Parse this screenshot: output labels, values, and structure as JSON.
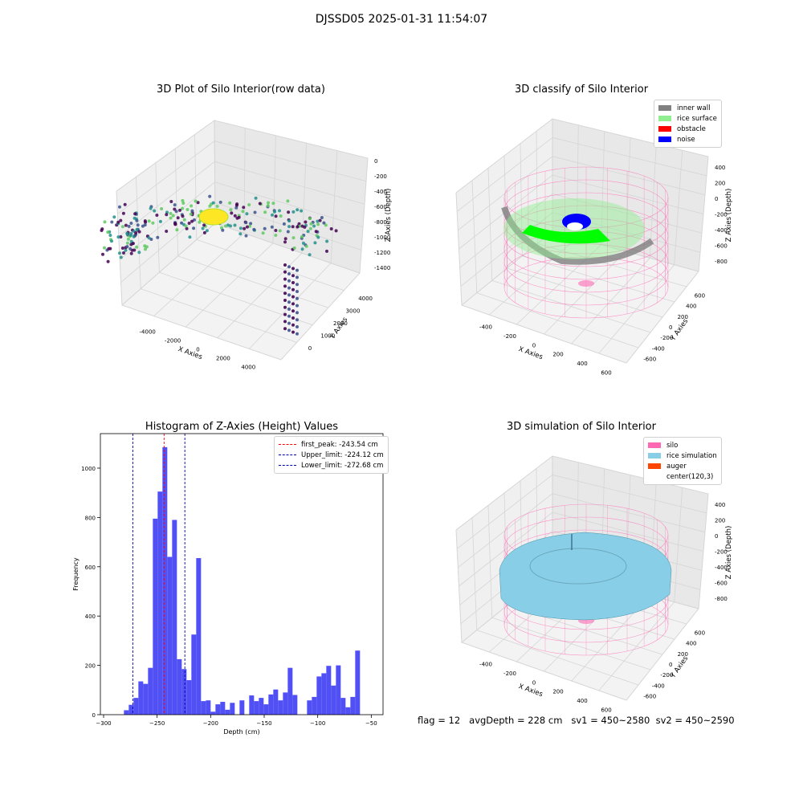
{
  "figure": {
    "suptitle": "DJSSD05 2025-01-31 11:54:07",
    "status": {
      "flag": "flag = 12",
      "avg_depth": "avgDepth = 228 cm",
      "sv1": "sv1 = 450~2580",
      "sv2": "sv2 = 450~2590"
    }
  },
  "chart_data": [
    {
      "type": "scatter",
      "title": "3D Plot of Silo Interior(row data)",
      "xlabel": "X Axies",
      "ylabel": "Y Axies",
      "zlabel": "Z Axies (Depth)",
      "x_ticks": [
        "-4000",
        "-2000",
        "0",
        "2000",
        "4000"
      ],
      "y_ticks": [
        "0",
        "1000",
        "2000",
        "3000",
        "4000"
      ],
      "z_ticks": [
        "0",
        "-200",
        "-400",
        "-600",
        "-800",
        "-1000",
        "-1200",
        "-1400"
      ],
      "colormap": [
        "#440154",
        "#3b528b",
        "#21918c",
        "#5ec962",
        "#fde725"
      ],
      "grid": true
    },
    {
      "type": "scatter",
      "title": "3D classify of Silo Interior",
      "xlabel": "X Axies",
      "ylabel": "Y Axies",
      "zlabel": "Z Axies (Depth)",
      "x_ticks": [
        "-400",
        "-200",
        "0",
        "200",
        "400",
        "600"
      ],
      "y_ticks": [
        "-600",
        "-400",
        "-200",
        "0",
        "200",
        "400",
        "600"
      ],
      "z_ticks": [
        "400",
        "200",
        "0",
        "-200",
        "-400",
        "-600",
        "-800"
      ],
      "legend": [
        {
          "label": "inner wall",
          "color": "#808080"
        },
        {
          "label": "rice surface",
          "color": "#90ee90"
        },
        {
          "label": "obstacle",
          "color": "#ff0000"
        },
        {
          "label": "noise",
          "color": "#0000ff"
        }
      ],
      "legend_position": "top-right",
      "grid": true
    },
    {
      "type": "bar",
      "title": "Histogram of Z-Axies (Height) Values",
      "xlabel": "Depth (cm)",
      "ylabel": "Frequency",
      "xlim": [
        -303,
        -39
      ],
      "ylim": [
        0,
        1140
      ],
      "x_ticks": [
        -300,
        -250,
        -200,
        -150,
        -100,
        -50
      ],
      "y_ticks": [
        0,
        200,
        400,
        600,
        800,
        1000
      ],
      "bar_color": "#5050f5",
      "bin_width": 4.5,
      "bins": [
        [
          -281.0,
          18
        ],
        [
          -276.5,
          40
        ],
        [
          -272.0,
          68
        ],
        [
          -267.5,
          135
        ],
        [
          -263.0,
          125
        ],
        [
          -258.5,
          190
        ],
        [
          -254.0,
          795
        ],
        [
          -249.5,
          905
        ],
        [
          -245.0,
          1085
        ],
        [
          -240.5,
          640
        ],
        [
          -236.0,
          790
        ],
        [
          -231.5,
          225
        ],
        [
          -227.0,
          185
        ],
        [
          -222.5,
          140
        ],
        [
          -218.0,
          325
        ],
        [
          -213.5,
          635
        ],
        [
          -209.0,
          55
        ],
        [
          -204.5,
          58
        ],
        [
          -200.0,
          12
        ],
        [
          -195.5,
          42
        ],
        [
          -191.0,
          52
        ],
        [
          -186.5,
          20
        ],
        [
          -182.0,
          48
        ],
        [
          -173.0,
          58
        ],
        [
          -164.0,
          78
        ],
        [
          -159.5,
          55
        ],
        [
          -155.0,
          68
        ],
        [
          -150.5,
          42
        ],
        [
          -146.0,
          82
        ],
        [
          -141.5,
          102
        ],
        [
          -137.0,
          58
        ],
        [
          -132.5,
          90
        ],
        [
          -128.0,
          190
        ],
        [
          -123.5,
          80
        ],
        [
          -110.0,
          58
        ],
        [
          -105.5,
          72
        ],
        [
          -101.0,
          155
        ],
        [
          -96.5,
          168
        ],
        [
          -92.0,
          198
        ],
        [
          -87.5,
          118
        ],
        [
          -83.0,
          200
        ],
        [
          -78.5,
          68
        ],
        [
          -74.0,
          30
        ],
        [
          -69.5,
          72
        ],
        [
          -65.0,
          260
        ]
      ],
      "vlines": [
        {
          "x": -243.54,
          "color": "#ff0000",
          "label": "first_peak: -243.54 cm"
        },
        {
          "x": -224.12,
          "color": "#0000aa",
          "label": "Upper_limit: -224.12 cm"
        },
        {
          "x": -272.68,
          "color": "#0000aa",
          "label": "Lower_limit: -272.68 cm"
        }
      ],
      "legend_position": "top-right"
    },
    {
      "type": "surface",
      "title": "3D simulation of Silo Interior",
      "xlabel": "X Axies",
      "ylabel": "Y Axies",
      "zlabel": "Z Axies (Depth)",
      "x_ticks": [
        "-400",
        "-200",
        "0",
        "200",
        "400",
        "600"
      ],
      "y_ticks": [
        "-600",
        "-400",
        "-200",
        "0",
        "200",
        "400",
        "600"
      ],
      "z_ticks": [
        "400",
        "200",
        "0",
        "-200",
        "-400",
        "-600",
        "-800"
      ],
      "legend": [
        {
          "label": "silo",
          "color": "#ff69b4"
        },
        {
          "label": "rice simulation",
          "color": "#87cee6"
        },
        {
          "label": "auger",
          "color": "#ff4500"
        },
        {
          "label": "center(120,3)",
          "color": "#ffffff"
        }
      ],
      "legend_position": "top-right",
      "grid": true
    }
  ]
}
